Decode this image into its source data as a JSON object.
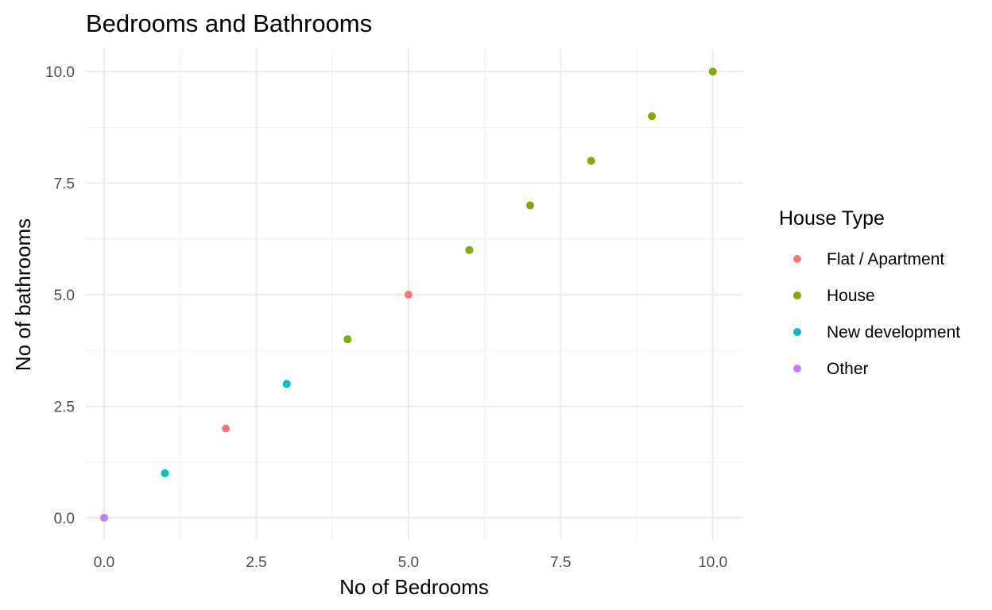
{
  "chart_data": {
    "type": "scatter",
    "title": "Bedrooms and Bathrooms",
    "xlabel": "No of Bedrooms",
    "ylabel": "No of bathrooms",
    "xlim": [
      -0.3,
      10.5
    ],
    "ylim": [
      -0.5,
      10.5
    ],
    "x_ticks": [
      "0.0",
      "2.5",
      "5.0",
      "7.5",
      "10.0"
    ],
    "y_ticks": [
      "0.0",
      "2.5",
      "5.0",
      "7.5",
      "10.0"
    ],
    "grid": true,
    "legend": {
      "title": "House Type",
      "position": "right",
      "entries": [
        {
          "name": "Flat / Apartment",
          "color": "#f8766d"
        },
        {
          "name": "House",
          "color": "#7cae00"
        },
        {
          "name": "New development",
          "color": "#00bfc4"
        },
        {
          "name": "Other",
          "color": "#c77cff"
        }
      ]
    },
    "points": [
      {
        "x": 0,
        "y": 0,
        "group": "Other"
      },
      {
        "x": 1,
        "y": 1,
        "group": "New development"
      },
      {
        "x": 2,
        "y": 2,
        "group": "Flat / Apartment"
      },
      {
        "x": 3,
        "y": 3,
        "group": "New development"
      },
      {
        "x": 4,
        "y": 4,
        "group": "House"
      },
      {
        "x": 5,
        "y": 5,
        "group": "Flat / Apartment"
      },
      {
        "x": 6,
        "y": 6,
        "group": "House"
      },
      {
        "x": 7,
        "y": 7,
        "group": "House"
      },
      {
        "x": 8,
        "y": 8,
        "group": "House"
      },
      {
        "x": 9,
        "y": 9,
        "group": "House"
      },
      {
        "x": 10,
        "y": 10,
        "group": "House"
      }
    ]
  }
}
